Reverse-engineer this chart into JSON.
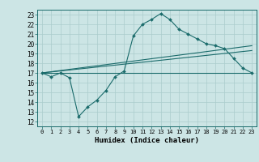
{
  "title": "",
  "xlabel": "Humidex (Indice chaleur)",
  "xlim": [
    -0.5,
    23.5
  ],
  "ylim": [
    11.5,
    23.5
  ],
  "yticks": [
    12,
    13,
    14,
    15,
    16,
    17,
    18,
    19,
    20,
    21,
    22,
    23
  ],
  "xticks": [
    0,
    1,
    2,
    3,
    4,
    5,
    6,
    7,
    8,
    9,
    10,
    11,
    12,
    13,
    14,
    15,
    16,
    17,
    18,
    19,
    20,
    21,
    22,
    23
  ],
  "bg_color": "#cce5e5",
  "grid_color": "#aacccc",
  "line_color": "#1a6b6b",
  "line1_x": [
    0,
    1,
    2,
    3,
    4,
    5,
    6,
    7,
    8,
    9,
    10,
    11,
    12,
    13,
    14,
    15,
    16,
    17,
    18,
    19,
    20,
    21,
    22,
    23
  ],
  "line1_y": [
    17.0,
    16.6,
    17.0,
    16.5,
    12.5,
    13.5,
    14.2,
    15.2,
    16.6,
    17.2,
    20.8,
    22.0,
    22.5,
    23.1,
    22.5,
    21.5,
    21.0,
    20.5,
    20.0,
    19.8,
    19.5,
    18.5,
    17.5,
    17.0
  ],
  "line2_x": [
    0,
    23
  ],
  "line2_y": [
    17.0,
    17.0
  ],
  "line3_x": [
    0,
    23
  ],
  "line3_y": [
    17.0,
    19.3
  ],
  "line4_x": [
    0,
    23
  ],
  "line4_y": [
    17.0,
    19.8
  ],
  "font_family": "monospace"
}
